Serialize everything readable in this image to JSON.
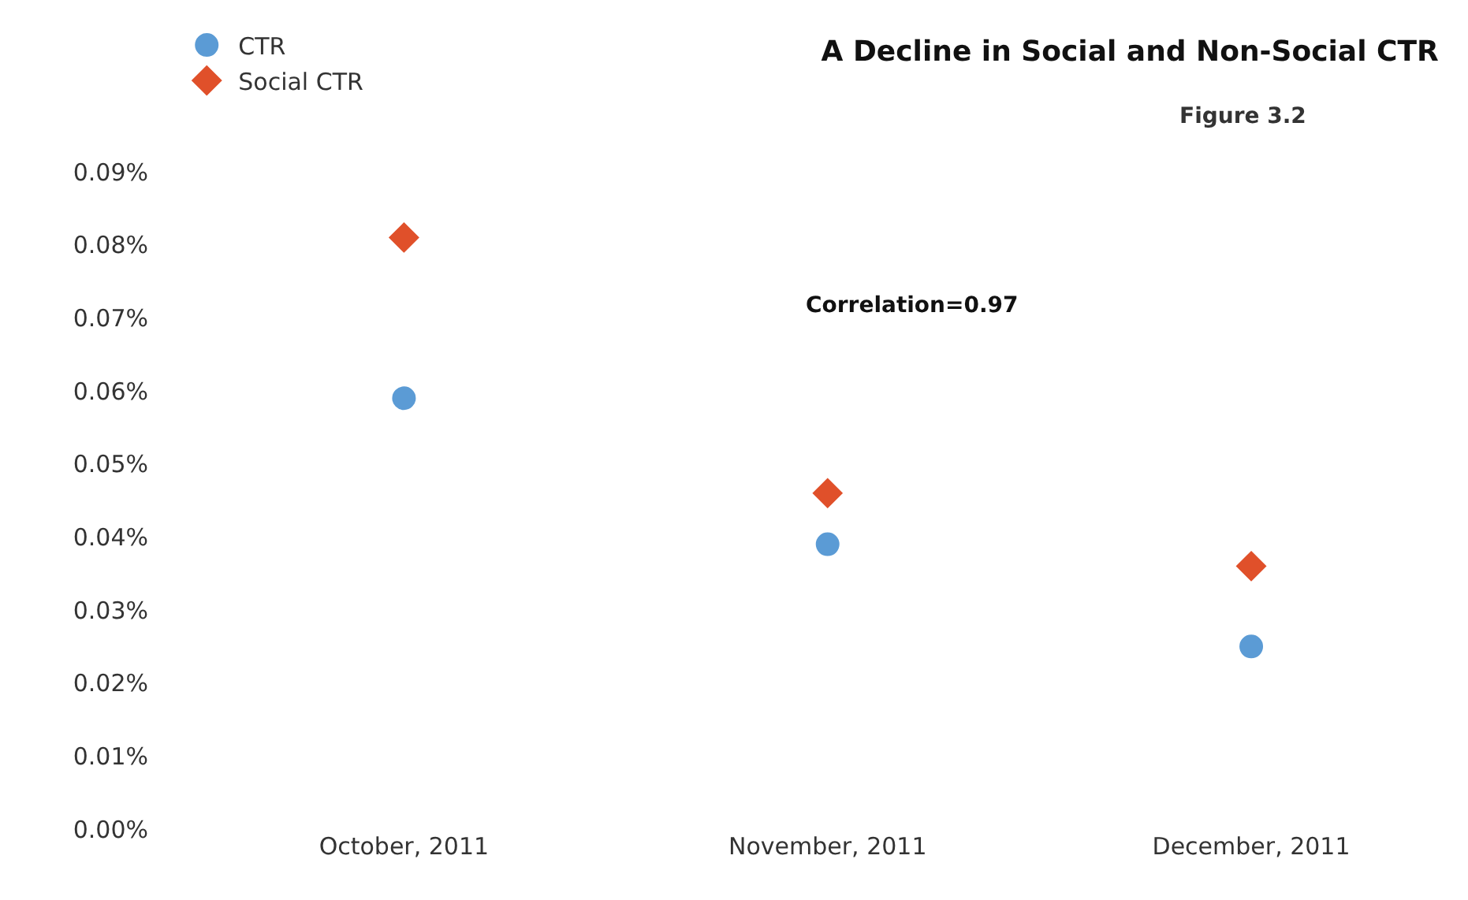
{
  "chart_data": {
    "type": "scatter",
    "title": "A Decline in Social and Non-Social CTR",
    "subtitle": "Figure 3.2",
    "categories": [
      "October, 2011",
      "November, 2011",
      "December, 2011"
    ],
    "series": [
      {
        "name": "CTR",
        "color": "#5b9bd5",
        "marker": "circle",
        "values": [
          0.059,
          0.039,
          0.025
        ]
      },
      {
        "name": "Social CTR",
        "color": "#e0502a",
        "marker": "diamond",
        "values": [
          0.081,
          0.046,
          0.036
        ]
      }
    ],
    "ylim": [
      0,
      0.09
    ],
    "yticks": [
      {
        "value": 0,
        "label": "0.00%"
      },
      {
        "value": 0.01,
        "label": "0.01%"
      },
      {
        "value": 0.02,
        "label": "0.02%"
      },
      {
        "value": 0.03,
        "label": "0.03%"
      },
      {
        "value": 0.04,
        "label": "0.04%"
      },
      {
        "value": 0.05,
        "label": "0.05%"
      },
      {
        "value": 0.06,
        "label": "0.06%"
      },
      {
        "value": 0.07,
        "label": "0.07%"
      },
      {
        "value": 0.08,
        "label": "0.08%"
      },
      {
        "value": 0.09,
        "label": "0.09%"
      }
    ],
    "annotations": [
      "Correlation=0.97"
    ],
    "legend": "top left"
  }
}
